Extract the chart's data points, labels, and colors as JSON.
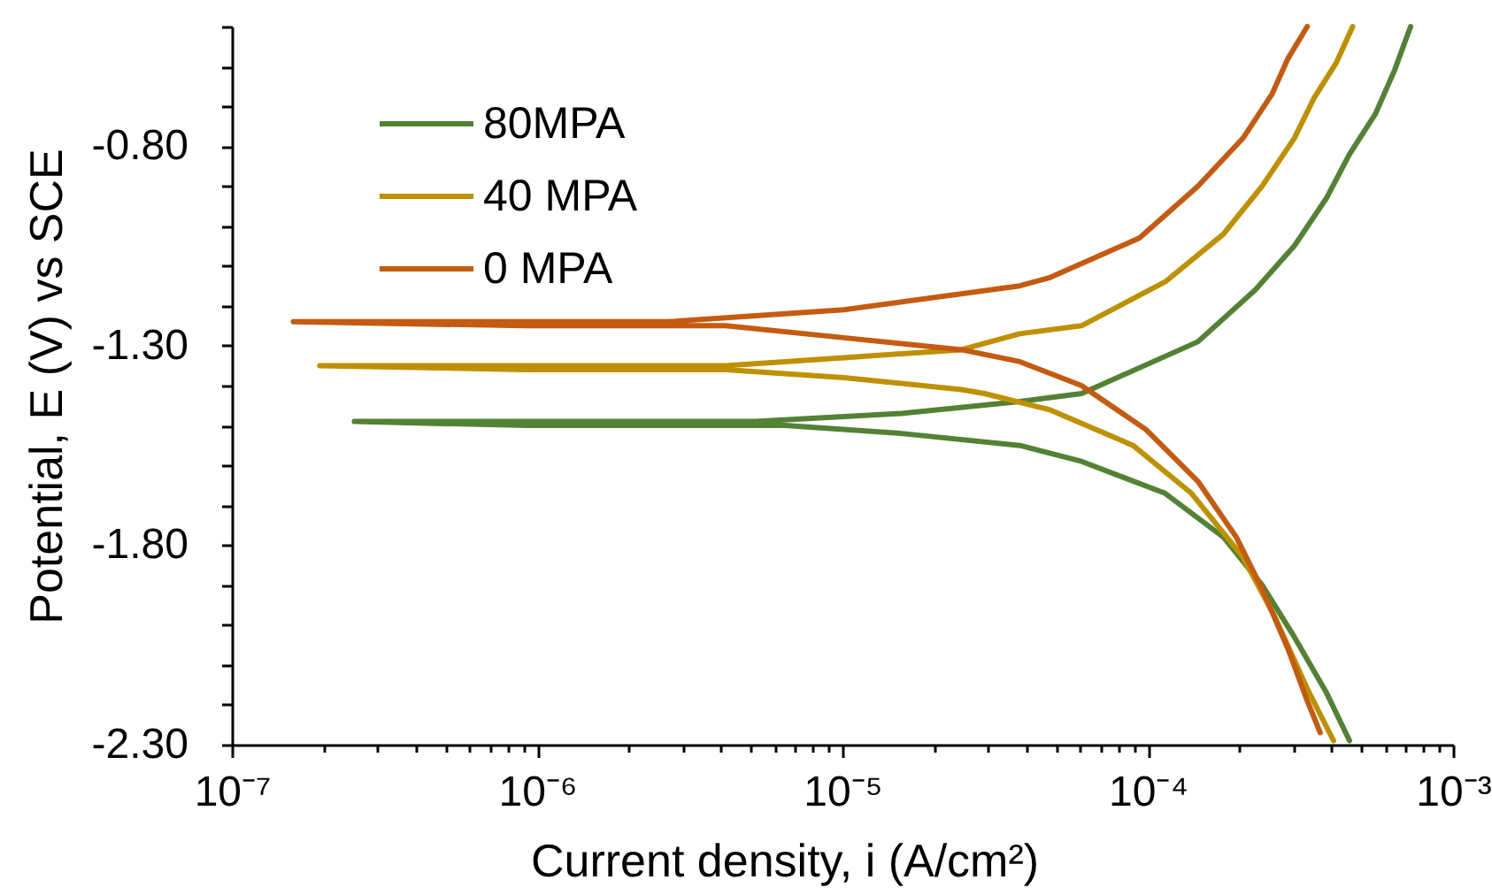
{
  "chart_data": {
    "type": "line",
    "xlabel": "Current density, i (A/cm²)",
    "ylabel": "Potential, E (V) vs SCE",
    "log": "x",
    "grid": false,
    "legend": "top left",
    "xlim": [
      1e-07,
      0.001
    ],
    "ylim": [
      -2.3,
      -0.5
    ],
    "xticks": [
      {
        "value": 1e-07,
        "label": "10⁻⁷"
      },
      {
        "value": 2e-07,
        "label": null
      },
      {
        "value": 3e-07,
        "label": null
      },
      {
        "value": 4e-07,
        "label": null
      },
      {
        "value": 5e-07,
        "label": null
      },
      {
        "value": 6e-07,
        "label": null
      },
      {
        "value": 7e-07,
        "label": null
      },
      {
        "value": 8e-07,
        "label": null
      },
      {
        "value": 9e-07,
        "label": null
      },
      {
        "value": 1e-06,
        "label": "10⁻⁶"
      },
      {
        "value": 2e-06,
        "label": null
      },
      {
        "value": 3e-06,
        "label": null
      },
      {
        "value": 4e-06,
        "label": null
      },
      {
        "value": 5e-06,
        "label": null
      },
      {
        "value": 6e-06,
        "label": null
      },
      {
        "value": 7e-06,
        "label": null
      },
      {
        "value": 8e-06,
        "label": null
      },
      {
        "value": 9e-06,
        "label": null
      },
      {
        "value": 1e-05,
        "label": "10⁻⁵"
      },
      {
        "value": 2e-05,
        "label": null
      },
      {
        "value": 3e-05,
        "label": null
      },
      {
        "value": 4e-05,
        "label": null
      },
      {
        "value": 5e-05,
        "label": null
      },
      {
        "value": 6e-05,
        "label": null
      },
      {
        "value": 7e-05,
        "label": null
      },
      {
        "value": 8e-05,
        "label": null
      },
      {
        "value": 9e-05,
        "label": null
      },
      {
        "value": 0.0001,
        "label": "10⁻⁴"
      },
      {
        "value": 0.0002,
        "label": null
      },
      {
        "value": 0.0003,
        "label": null
      },
      {
        "value": 0.0004,
        "label": null
      },
      {
        "value": 0.0005,
        "label": null
      },
      {
        "value": 0.0006,
        "label": null
      },
      {
        "value": 0.0007,
        "label": null
      },
      {
        "value": 0.0008,
        "label": null
      },
      {
        "value": 0.0009,
        "label": null
      },
      {
        "value": 0.001,
        "label": "10⁻³"
      }
    ],
    "yticks": [
      {
        "value": -2.3,
        "label": "-2.30"
      },
      {
        "value": -2.2,
        "label": null
      },
      {
        "value": -2.1,
        "label": null
      },
      {
        "value": -2.0,
        "label": null
      },
      {
        "value": -1.9,
        "label": null
      },
      {
        "value": -1.8,
        "label": "-1.80"
      },
      {
        "value": -1.7,
        "label": null
      },
      {
        "value": -1.6,
        "label": null
      },
      {
        "value": -1.5,
        "label": null
      },
      {
        "value": -1.4,
        "label": null
      },
      {
        "value": -1.3,
        "label": "-1.30"
      },
      {
        "value": -1.2,
        "label": null
      },
      {
        "value": -1.1,
        "label": null
      },
      {
        "value": -1.0,
        "label": null
      },
      {
        "value": -0.9,
        "label": null
      },
      {
        "value": -0.8,
        "label": "-0.80"
      },
      {
        "value": -0.7,
        "label": null
      },
      {
        "value": -0.6,
        "label": null
      },
      {
        "value": -0.5,
        "label": null
      }
    ],
    "series": [
      {
        "name": "80MPA",
        "color": "#548235",
        "x": [
          0.000458,
          0.000385,
          0.000302,
          0.000237,
          0.000177,
          0.000114,
          6.07e-05,
          3.81e-05,
          1.56e-05,
          6.47e-06,
          9.2e-07,
          2.52e-07,
          7.06e-07,
          5.19e-06,
          1.56e-05,
          3.81e-05,
          6.07e-05,
          0.000146,
          0.000225,
          0.000302,
          0.000385,
          0.000458,
          0.000556,
          0.000643,
          0.000726
        ],
        "values": [
          -2.29,
          -2.17,
          -2.03,
          -1.9,
          -1.78,
          -1.67,
          -1.59,
          -1.55,
          -1.52,
          -1.5,
          -1.5,
          -1.49,
          -1.49,
          -1.49,
          -1.47,
          -1.44,
          -1.42,
          -1.29,
          -1.16,
          -1.05,
          -0.93,
          -0.82,
          -0.72,
          -0.61,
          -0.5
        ]
      },
      {
        "name": "40 MPA",
        "color": "#bf9000",
        "x": [
          0.000406,
          0.000333,
          0.000261,
          0.000205,
          0.000139,
          8.95e-05,
          4.75e-05,
          2.92e-05,
          2.45e-05,
          1.01e-05,
          4.14e-06,
          9.2e-07,
          1.94e-07,
          7.06e-07,
          4.14e-06,
          1.01e-05,
          2.45e-05,
          3.81e-05,
          6.07e-05,
          0.000114,
          0.000177,
          0.000237,
          0.000302,
          0.00035,
          0.000415,
          0.000469
        ],
        "values": [
          -2.29,
          -2.16,
          -1.98,
          -1.83,
          -1.67,
          -1.55,
          -1.46,
          -1.42,
          -1.41,
          -1.38,
          -1.36,
          -1.36,
          -1.35,
          -1.35,
          -1.35,
          -1.33,
          -1.31,
          -1.27,
          -1.25,
          -1.14,
          -1.02,
          -0.9,
          -0.78,
          -0.68,
          -0.59,
          -0.5
        ]
      },
      {
        "name": "0 MPA",
        "color": "#c55a11",
        "x": [
          0.000367,
          0.000333,
          0.000288,
          0.000237,
          0.000195,
          0.000146,
          9.86e-05,
          6.07e-05,
          3.81e-05,
          2.45e-05,
          1.01e-05,
          4.14e-06,
          9.2e-07,
          1.59e-07,
          7.06e-07,
          2.67e-06,
          1.01e-05,
          3.81e-05,
          4.75e-05,
          9.4e-05,
          0.000146,
          0.000205,
          0.000255,
          0.000288,
          0.000333
        ],
        "values": [
          -2.27,
          -2.19,
          -2.06,
          -1.91,
          -1.78,
          -1.64,
          -1.51,
          -1.4,
          -1.34,
          -1.31,
          -1.28,
          -1.25,
          -1.25,
          -1.24,
          -1.24,
          -1.24,
          -1.21,
          -1.15,
          -1.13,
          -1.03,
          -0.9,
          -0.78,
          -0.67,
          -0.58,
          -0.5
        ]
      }
    ]
  }
}
